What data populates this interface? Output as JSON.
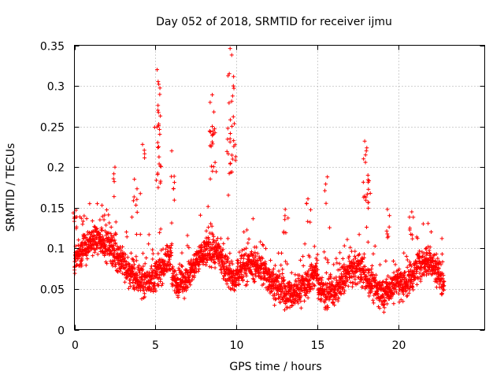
{
  "chart_data": {
    "type": "scatter",
    "title": "Day 052 of 2018, SRMTID for receiver ijmu",
    "xlabel": "GPS time / hours",
    "ylabel": "SRMTID / TECUs",
    "xlim": [
      0,
      25.3
    ],
    "ylim": [
      0,
      0.35
    ],
    "xticks": [
      0,
      5,
      10,
      15,
      20
    ],
    "xtick_labels": [
      "0",
      "5",
      "10",
      "15",
      "20"
    ],
    "yticks": [
      0,
      0.05,
      0.1,
      0.15,
      0.2,
      0.25,
      0.3,
      0.35
    ],
    "ytick_labels": [
      "0",
      "0.05",
      "0.1",
      "0.15",
      "0.2",
      "0.25",
      "0.3",
      "0.35"
    ],
    "grid": true,
    "marker": "plus",
    "series": [
      {
        "name": "SRMTID",
        "color": "#ff0000",
        "x_range": [
          0,
          22.8
        ],
        "cadence_hours": 0.0167,
        "typical_value_range": [
          0.03,
          0.13
        ],
        "peaks": [
          {
            "x": 0.1,
            "y": 0.147
          },
          {
            "x": 0.6,
            "y": 0.14
          },
          {
            "x": 1.7,
            "y": 0.153
          },
          {
            "x": 2.5,
            "y": 0.2
          },
          {
            "x": 3.7,
            "y": 0.185
          },
          {
            "x": 4.2,
            "y": 0.228
          },
          {
            "x": 5.1,
            "y": 0.32
          },
          {
            "x": 5.2,
            "y": 0.302
          },
          {
            "x": 5.15,
            "y": 0.27
          },
          {
            "x": 5.2,
            "y": 0.253
          },
          {
            "x": 6.0,
            "y": 0.22
          },
          {
            "x": 8.5,
            "y": 0.289
          },
          {
            "x": 8.6,
            "y": 0.268
          },
          {
            "x": 8.5,
            "y": 0.25
          },
          {
            "x": 9.6,
            "y": 0.346
          },
          {
            "x": 9.7,
            "y": 0.338
          },
          {
            "x": 9.55,
            "y": 0.315
          },
          {
            "x": 9.8,
            "y": 0.3
          },
          {
            "x": 9.8,
            "y": 0.262
          },
          {
            "x": 9.6,
            "y": 0.235
          },
          {
            "x": 13.0,
            "y": 0.148
          },
          {
            "x": 14.4,
            "y": 0.161
          },
          {
            "x": 15.6,
            "y": 0.188
          },
          {
            "x": 17.9,
            "y": 0.232
          },
          {
            "x": 18.0,
            "y": 0.22
          },
          {
            "x": 18.1,
            "y": 0.19
          },
          {
            "x": 19.3,
            "y": 0.148
          },
          {
            "x": 20.8,
            "y": 0.145
          }
        ],
        "min_value": 0.015
      }
    ]
  }
}
